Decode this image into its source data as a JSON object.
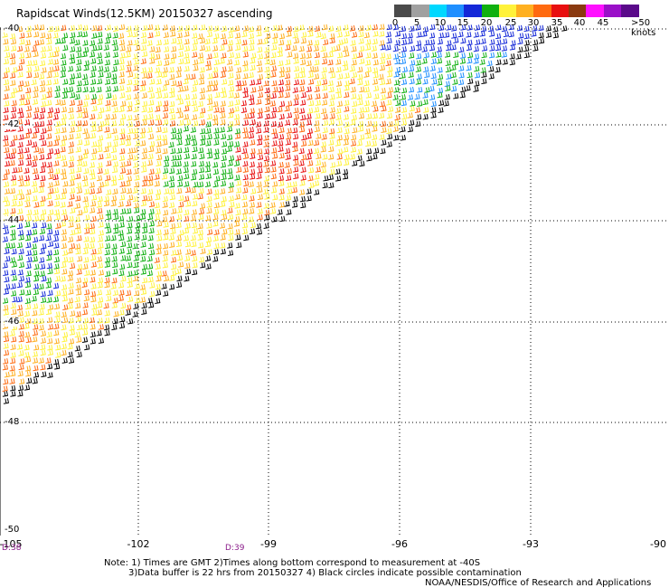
{
  "title": "Rapidscat Winds(12.5KM) 20150327 ascending",
  "colorbar": {
    "colors": [
      "#4a4a4a",
      "#a0a0a0",
      "#00d8ff",
      "#1f8fff",
      "#1428d8",
      "#10b010",
      "#fff23a",
      "#ffb020",
      "#ff6a10",
      "#e81010",
      "#8a3a10",
      "#ff10ff",
      "#9a10c8",
      "#5a0a8a"
    ],
    "tick_labels": [
      "0",
      "5",
      "10",
      "15",
      "20",
      "25",
      "30",
      "35",
      "40",
      "45",
      ">50 knots"
    ]
  },
  "lat_labels": [
    "-40",
    "-42",
    "-44",
    "-46",
    "-48",
    "-50"
  ],
  "lon_labels": [
    "-105",
    "-102",
    "-99",
    "-96",
    "-93",
    "-90"
  ],
  "time_labels": [
    "D:38",
    "D:39"
  ],
  "notes": [
    "Note: 1) Times are GMT 2)Times along bottom correspond to measurement at -40S",
    "3)Data buffer is 22 hrs from 20150327 4) Black circles indicate possible contamination"
  ],
  "credit": "NOAA/NESDIS/Office of Research and Applications"
}
